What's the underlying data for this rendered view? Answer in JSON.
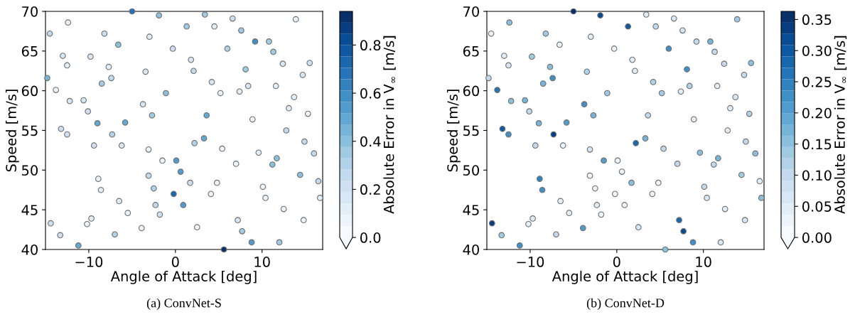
{
  "chart_data": [
    {
      "type": "scatter",
      "title": "(a) ConvNet-S",
      "xlabel": "Angle of Attack [deg]",
      "ylabel": "Speed [m/s]",
      "clabel": "Absolute Error in V$_{∞}$ [m/s]",
      "marker": "circle",
      "xlim": [
        -15,
        17
      ],
      "ylim": [
        40,
        70
      ],
      "xticks": [
        {
          "value": -10,
          "label": "−10"
        },
        0,
        10
      ],
      "yticks": [
        40,
        45,
        50,
        55,
        60,
        65,
        70
      ],
      "clim": [
        0,
        0.94
      ],
      "cticks": [
        {
          "value": 0,
          "label": "0.0"
        },
        0.2,
        0.4,
        0.6,
        0.8
      ],
      "x": [
        -14.8,
        -14.5,
        -12.4,
        -13.0,
        -12.5,
        -13.8,
        -12.2,
        -10.6,
        -10.1,
        -9.8,
        -9.0,
        -8.5,
        -8.2,
        -7.7,
        -7.4,
        -6.6,
        -5.8,
        -5.0,
        -3.75,
        -3.45,
        -3.0,
        -2.7,
        -1.9,
        -1.1,
        -0.3,
        1.3,
        1.8,
        2.1,
        3.4,
        3.6,
        4.2,
        4.5,
        5.2,
        6.0,
        6.6,
        7.4,
        7.6,
        8.1,
        8.4,
        8.9,
        9.2,
        10.8,
        11.3,
        11.6,
        12.4,
        12.8,
        13.1,
        13.7,
        13.9,
        14.7,
        15.3,
        15.5,
        -13.2,
        -12.5,
        -7.3,
        -9.4,
        -6.2,
        -3.1,
        -1.5,
        0.1,
        0.6,
        2.2,
        3.3,
        5.4,
        7.0,
        9.6,
        11.2,
        11.7,
        14.4,
        14.9,
        16.0,
        16.5,
        16.7,
        14.8,
        12.5,
        10.4,
        10.1,
        12.0,
        8.8,
        7.7,
        7.2,
        5.6,
        4.8,
        4.1,
        2.5,
        1.7,
        0.9,
        -0.2,
        -1.8,
        -2.3,
        -2.5,
        -3.1,
        -3.9,
        -5.5,
        -6.5,
        -7.0,
        -8.6,
        -8.9,
        -9.7,
        -10.2,
        -11.2,
        -13.3,
        -14.4
      ],
      "values": [
        61.6,
        67.2,
        68.6,
        64.4,
        63.2,
        60.1,
        58.7,
        58.8,
        57.4,
        64.3,
        55.9,
        60.9,
        67.2,
        63.0,
        61.6,
        65.8,
        56.0,
        70.0,
        58.3,
        62.4,
        66.8,
        56.9,
        69.5,
        59.7,
        65.3,
        68.1,
        63.9,
        62.5,
        69.6,
        56.9,
        61.1,
        68.1,
        59.7,
        65.3,
        69.1,
        59.9,
        67.6,
        62.7,
        60.6,
        56.4,
        66.2,
        66.2,
        64.9,
        60.6,
        63.4,
        55.0,
        57.8,
        59.2,
        69.0,
        62.0,
        57.1,
        63.5,
        55.2,
        54.5,
        54.5,
        53.1,
        53.1,
        52.6,
        51.2,
        51.2,
        49.8,
        53.4,
        54.0,
        52.7,
        50.8,
        52.2,
        50.7,
        51.5,
        49.4,
        53.6,
        52.1,
        48.6,
        46.5,
        43.7,
        45.1,
        46.5,
        47.9,
        40.9,
        40.9,
        42.3,
        43.7,
        40.0,
        48.4,
        47.0,
        42.8,
        48.4,
        45.6,
        47.0,
        44.4,
        45.6,
        47.7,
        49.3,
        42.7,
        44.6,
        46.1,
        41.9,
        47.5,
        48.9,
        43.9,
        43.2,
        40.5,
        41.8,
        43.3
      ],
      "cvalues": [
        0.45,
        0.25,
        0.05,
        0.15,
        0.1,
        0.05,
        0.15,
        0.15,
        0.2,
        0.15,
        0.5,
        0.35,
        0.2,
        0.1,
        0.25,
        0.4,
        0.5,
        0.7,
        0.15,
        0.15,
        0.1,
        0.35,
        0.4,
        0.4,
        0.2,
        0.35,
        0.15,
        0.25,
        0.35,
        0.5,
        0.15,
        0.1,
        0.05,
        0.3,
        0.2,
        0.1,
        0.35,
        0.35,
        0.15,
        0.05,
        0.6,
        0.35,
        0.35,
        0.1,
        0.15,
        0.25,
        0.1,
        0.1,
        0.05,
        0.15,
        0.05,
        0.2,
        0.2,
        0.2,
        0.3,
        0.2,
        0.15,
        0.05,
        0.05,
        0.55,
        0.55,
        0.3,
        0.5,
        0.05,
        0.05,
        0.1,
        0.4,
        0.4,
        0.4,
        0.25,
        0.25,
        0.25,
        0.1,
        0.05,
        0.05,
        0.05,
        0.05,
        0.35,
        0.55,
        0.35,
        0.15,
        0.9,
        0.05,
        0.05,
        0.05,
        0.2,
        0.55,
        0.75,
        0.2,
        0.25,
        0.3,
        0.25,
        0.05,
        0.05,
        0.1,
        0.3,
        0.1,
        0.05,
        0.1,
        0.05,
        0.5,
        0.2,
        0.2
      ]
    },
    {
      "type": "scatter",
      "title": "(b) ConvNet-D",
      "xlabel": "Angle of Attack [deg]",
      "ylabel": "Speed [m/s]",
      "clabel": "Absolute Error in V$_{∞}$ [m/s]",
      "marker": "circle",
      "xlim": [
        -15,
        17
      ],
      "ylim": [
        40,
        70
      ],
      "xticks": [
        {
          "value": -10,
          "label": "−10"
        },
        0,
        10
      ],
      "yticks": [
        40,
        45,
        50,
        55,
        60,
        65,
        70
      ],
      "clim": [
        0,
        0.363
      ],
      "cticks": [
        {
          "value": 0,
          "label": "0.00"
        },
        {
          "value": 0.05,
          "label": "0.05"
        },
        {
          "value": 0.1,
          "label": "0.10"
        },
        {
          "value": 0.15,
          "label": "0.15"
        },
        {
          "value": 0.2,
          "label": "0.20"
        },
        {
          "value": 0.25,
          "label": "0.25"
        },
        {
          "value": 0.3,
          "label": "0.30"
        },
        {
          "value": 0.35,
          "label": "0.35"
        }
      ],
      "x": [
        -14.8,
        -14.5,
        -12.4,
        -13.0,
        -12.5,
        -13.8,
        -12.2,
        -10.6,
        -10.1,
        -9.8,
        -9.0,
        -8.5,
        -8.2,
        -7.7,
        -7.4,
        -6.6,
        -5.8,
        -5.0,
        -3.75,
        -3.45,
        -3.0,
        -2.7,
        -1.9,
        -1.1,
        -0.3,
        1.3,
        1.8,
        2.1,
        3.4,
        3.6,
        4.2,
        4.5,
        5.2,
        6.0,
        6.6,
        7.4,
        7.6,
        8.1,
        8.4,
        8.9,
        9.2,
        10.8,
        11.3,
        11.6,
        12.4,
        12.8,
        13.1,
        13.7,
        13.9,
        14.7,
        15.3,
        15.5,
        -13.2,
        -12.5,
        -7.3,
        -9.4,
        -6.2,
        -3.1,
        -1.5,
        0.1,
        0.6,
        2.2,
        3.3,
        5.4,
        7.0,
        9.6,
        11.2,
        11.7,
        14.4,
        14.9,
        16.0,
        16.5,
        16.7,
        14.8,
        12.5,
        10.4,
        10.1,
        12.0,
        8.8,
        7.7,
        7.2,
        5.6,
        4.8,
        4.1,
        2.5,
        1.7,
        0.9,
        -0.2,
        -1.8,
        -2.3,
        -2.5,
        -3.1,
        -3.9,
        -5.5,
        -6.5,
        -7.0,
        -8.6,
        -8.9,
        -9.7,
        -10.2,
        -11.2,
        -13.3,
        -14.4
      ],
      "values": [
        61.6,
        67.2,
        68.6,
        64.4,
        63.2,
        60.1,
        58.7,
        58.8,
        57.4,
        64.3,
        55.9,
        60.9,
        67.2,
        63.0,
        61.6,
        65.8,
        56.0,
        70.0,
        58.3,
        62.4,
        66.8,
        56.9,
        69.5,
        59.7,
        65.3,
        68.1,
        63.9,
        62.5,
        69.6,
        56.9,
        61.1,
        68.1,
        59.7,
        65.3,
        69.1,
        59.9,
        67.6,
        62.7,
        60.6,
        56.4,
        66.2,
        66.2,
        64.9,
        60.6,
        63.4,
        55.0,
        57.8,
        59.2,
        69.0,
        62.0,
        57.1,
        63.5,
        55.2,
        54.5,
        54.5,
        53.1,
        53.1,
        52.6,
        51.2,
        51.2,
        49.8,
        53.4,
        54.0,
        52.7,
        50.8,
        52.2,
        50.7,
        51.5,
        49.4,
        53.6,
        52.1,
        48.6,
        46.5,
        43.7,
        45.1,
        46.5,
        47.9,
        40.9,
        40.9,
        42.3,
        43.7,
        40.0,
        48.4,
        47.0,
        42.8,
        48.4,
        45.6,
        47.0,
        44.4,
        45.6,
        47.7,
        49.3,
        42.7,
        44.6,
        46.1,
        41.9,
        47.5,
        48.9,
        43.9,
        43.2,
        40.5,
        41.8,
        43.3
      ],
      "cvalues": [
        0.1,
        0.02,
        0.15,
        0.05,
        0.07,
        0.27,
        0.15,
        0.17,
        0.1,
        0.13,
        0.18,
        0.17,
        0.13,
        0.15,
        0.23,
        0.03,
        0.2,
        0.35,
        0.22,
        0.12,
        0.04,
        0.17,
        0.31,
        0.13,
        0.03,
        0.3,
        0.05,
        0.04,
        0.04,
        0.1,
        0.12,
        0.1,
        0.13,
        0.22,
        0.07,
        0.04,
        0.07,
        0.22,
        0.12,
        0.04,
        0.1,
        0.17,
        0.1,
        0.05,
        0.1,
        0.05,
        0.05,
        0.07,
        0.13,
        0.1,
        0.12,
        0.15,
        0.3,
        0.22,
        0.33,
        0.1,
        0.03,
        0.07,
        0.2,
        0.02,
        0.03,
        0.28,
        0.17,
        0.1,
        0.1,
        0.15,
        0.1,
        0.17,
        0.13,
        0.1,
        0.15,
        0.05,
        0.15,
        0.07,
        0.05,
        0.07,
        0.1,
        0.07,
        0.22,
        0.32,
        0.28,
        0.15,
        0.02,
        0.03,
        0.07,
        0.15,
        0.02,
        0.02,
        0.03,
        0.04,
        0.03,
        0.03,
        0.2,
        0.05,
        0.03,
        0.1,
        0.22,
        0.25,
        0.05,
        0.03,
        0.22,
        0.13,
        0.33
      ]
    }
  ]
}
